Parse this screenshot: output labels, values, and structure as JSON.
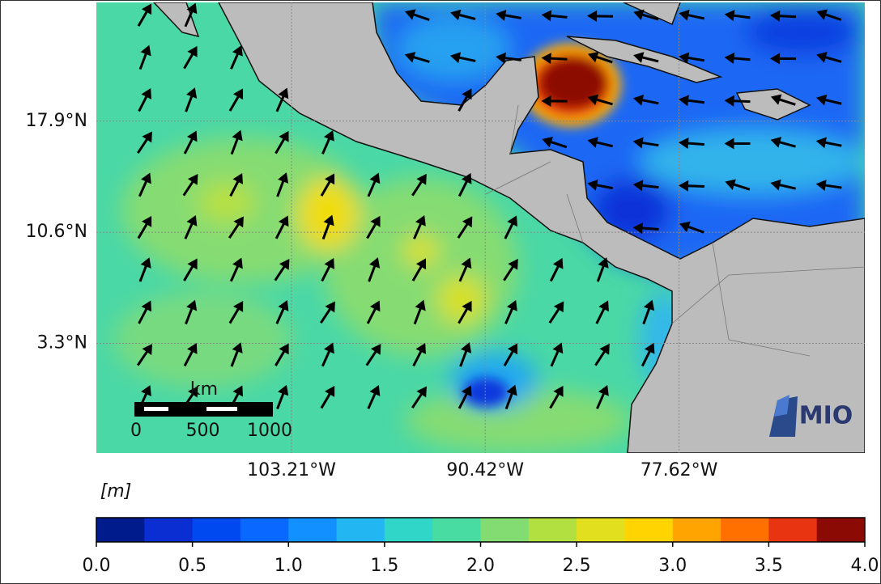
{
  "map": {
    "lat_labels": [
      {
        "value": 17.9,
        "label": "17.9°N"
      },
      {
        "value": 10.6,
        "label": "10.6°N"
      },
      {
        "value": 3.3,
        "label": "3.3°N"
      }
    ],
    "lon_labels": [
      {
        "value": -103.21,
        "label": "103.21°W"
      },
      {
        "value": -90.42,
        "label": "90.42°W"
      },
      {
        "value": -77.62,
        "label": "77.62°W"
      }
    ],
    "lat_lim": [
      -3.9,
      25.7
    ],
    "lon_lim": [
      -116.1,
      -65.35
    ],
    "scale_bar": {
      "unit": "km",
      "ticks": [
        0,
        500,
        1000
      ]
    },
    "logo": "MIO"
  },
  "colorbar": {
    "label": "[m]",
    "lim": [
      0,
      4
    ],
    "ticks": [
      {
        "value": 0,
        "label": "0.0"
      },
      {
        "value": 0.5,
        "label": "0.5"
      },
      {
        "value": 1,
        "label": "1.0"
      },
      {
        "value": 1.5,
        "label": "1.5"
      },
      {
        "value": 2,
        "label": "2.0"
      },
      {
        "value": 2.5,
        "label": "2.5"
      },
      {
        "value": 3,
        "label": "3.0"
      },
      {
        "value": 3.5,
        "label": "3.5"
      },
      {
        "value": 4,
        "label": "4.0"
      }
    ],
    "colors": [
      "#001c8c",
      "#0a2ed2",
      "#0048f0",
      "#0868ff",
      "#1290ff",
      "#22b6f2",
      "#30d6c8",
      "#48dca2",
      "#82dc72",
      "#b2e040",
      "#e2e01e",
      "#ffd400",
      "#ffa400",
      "#ff7000",
      "#e83410",
      "#8c0a04"
    ]
  }
}
